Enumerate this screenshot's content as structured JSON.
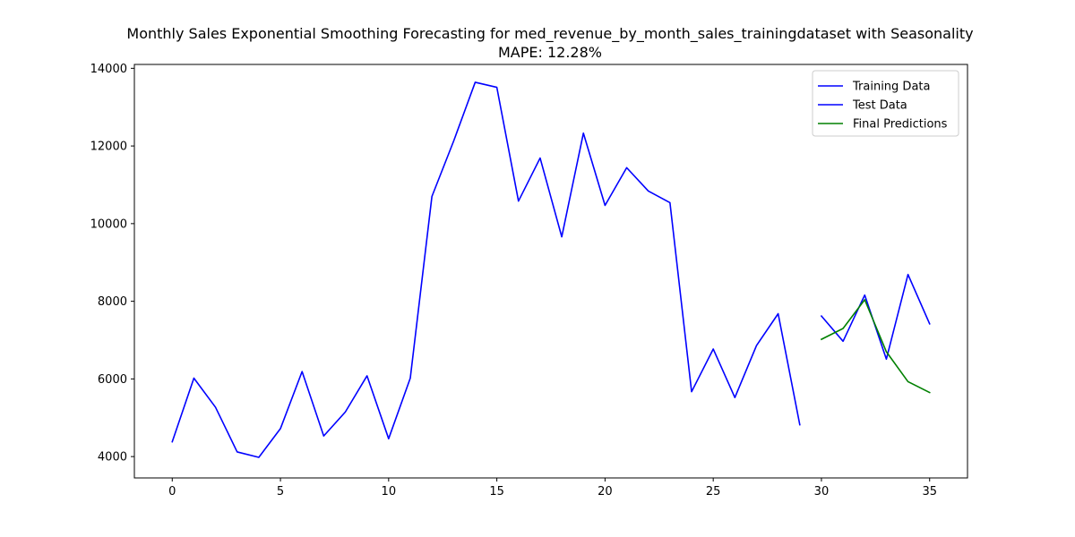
{
  "chart_data": {
    "type": "line",
    "title": "Monthly Sales Exponential Smoothing Forecasting for med_revenue_by_month_sales_trainingdataset with Seasonality",
    "subtitle": "MAPE: 12.28%",
    "xlabel": "",
    "ylabel": "",
    "xlim": [
      -1.75,
      36.75
    ],
    "ylim": [
      3450,
      14100
    ],
    "x_ticks": [
      0,
      5,
      10,
      15,
      20,
      25,
      30,
      35
    ],
    "y_ticks": [
      4000,
      6000,
      8000,
      10000,
      12000,
      14000
    ],
    "grid": false,
    "legend_position": "top-right",
    "series": [
      {
        "name": "Training Data",
        "color": "#0000ff",
        "x": [
          0,
          1,
          2,
          3,
          4,
          5,
          6,
          7,
          8,
          9,
          10,
          11,
          12,
          13,
          14,
          15,
          16,
          17,
          18,
          19,
          20,
          21,
          22,
          23,
          24,
          25,
          26,
          27,
          28,
          29
        ],
        "values": [
          4380,
          6020,
          5270,
          4120,
          3980,
          4720,
          6190,
          4530,
          5150,
          6080,
          4460,
          6020,
          10700,
          12120,
          13640,
          13510,
          10580,
          11690,
          9660,
          12330,
          10470,
          11440,
          10840,
          10540,
          5670,
          6770,
          5520,
          6860,
          7680,
          4820
        ]
      },
      {
        "name": "Test Data",
        "color": "#0000ff",
        "x": [
          30,
          31,
          32,
          33,
          34,
          35
        ],
        "values": [
          7620,
          6970,
          8160,
          6510,
          8690,
          7420
        ]
      },
      {
        "name": "Final Predictions",
        "color": "#008000",
        "x": [
          30,
          31,
          32,
          33,
          34,
          35
        ],
        "values": [
          7020,
          7300,
          8040,
          6700,
          5930,
          5650
        ]
      }
    ]
  }
}
